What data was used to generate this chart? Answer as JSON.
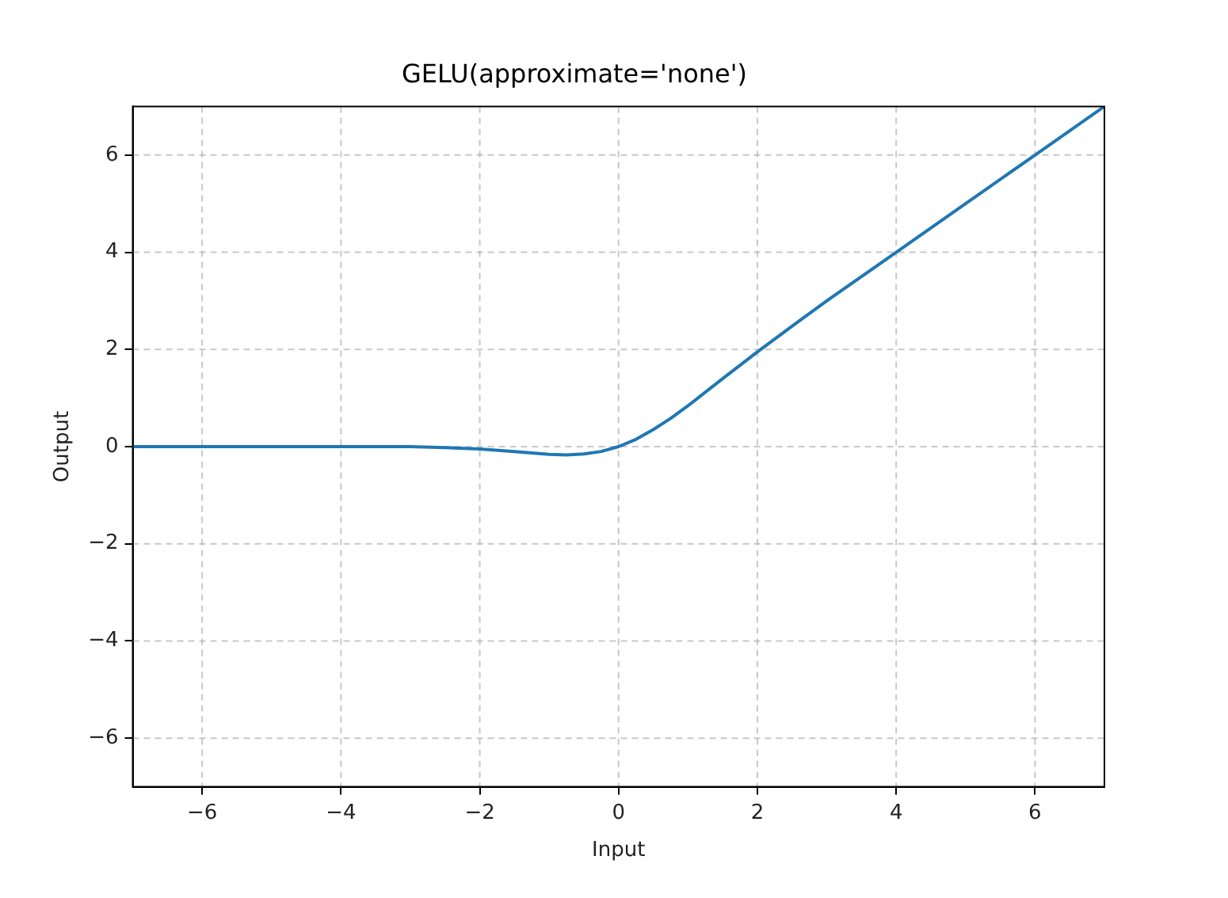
{
  "chart_data": {
    "type": "line",
    "title": "GELU(approximate='none')",
    "xlabel": "Input",
    "ylabel": "Output",
    "series": [
      {
        "color": "#1f77b4",
        "x": [
          -7,
          -6,
          -5,
          -4,
          -3,
          -2.5,
          -2,
          -1.5,
          -1,
          -0.75,
          -0.5,
          -0.25,
          0,
          0.25,
          0.5,
          0.75,
          1,
          1.5,
          2,
          2.5,
          3,
          4,
          5,
          6,
          7
        ],
        "values": [
          0,
          0,
          0,
          0,
          0,
          -0.02,
          -0.05,
          -0.1,
          -0.16,
          -0.17,
          -0.15,
          -0.1,
          0,
          0.15,
          0.35,
          0.58,
          0.84,
          1.4,
          1.95,
          2.48,
          3,
          4,
          5,
          6,
          7
        ]
      }
    ],
    "xlim": [
      -7,
      7
    ],
    "ylim": [
      -7,
      7
    ],
    "xticks": [
      -6,
      -4,
      -2,
      0,
      2,
      4,
      6
    ],
    "yticks": [
      -6,
      -4,
      -2,
      0,
      2,
      4,
      6
    ],
    "grid": true,
    "legend": false
  }
}
